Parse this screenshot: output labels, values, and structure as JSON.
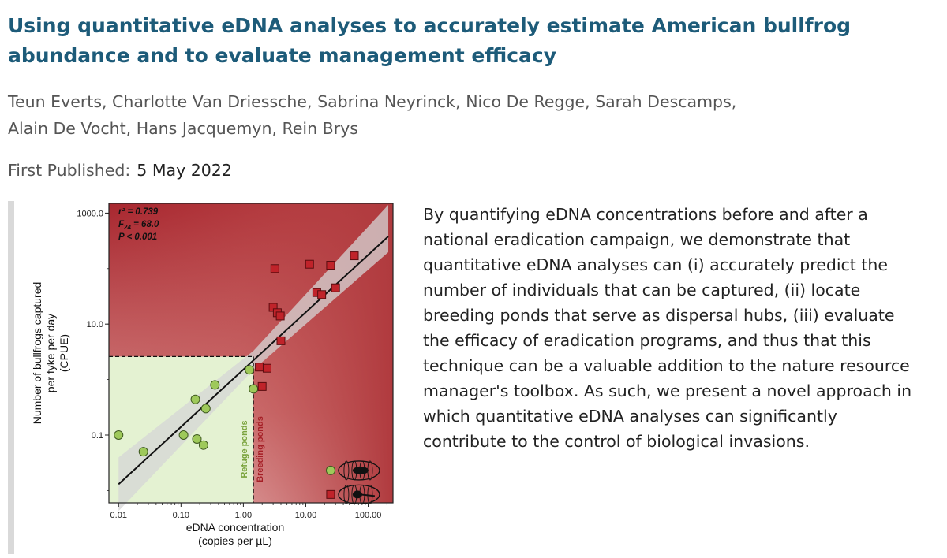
{
  "article": {
    "title": "Using quantitative eDNA analyses to accurately estimate American bullfrog abundance and to evaluate management efficacy",
    "authors": [
      "Teun Everts, Charlotte Van Driessche, Sabrina Neyrinck, Nico De Regge, Sarah Descamps,",
      "Alain De Vocht, Hans Jacquemyn, Rein Brys"
    ],
    "published_label": "First Published:",
    "published_date": "5 May 2022",
    "abstract": "By quantifying eDNA concentrations before and after a national eradication campaign, we demonstrate that quantitative eDNA analyses can (i) accurately predict the number of individuals that can be captured, (ii) locate breeding ponds that serve as dispersal hubs, (iii) evaluate the efficacy of eradication programs, and thus that this technique can be a valuable addition to the nature resource manager's toolbox. As such, we present a novel approach in which quantitative eDNA analyses can significantly contribute to the control of biological invasions."
  },
  "chart_data": {
    "type": "scatter",
    "x_scale": "log",
    "y_scale": "log",
    "xlim": [
      0.007,
      250
    ],
    "ylim": [
      0.006,
      1500
    ],
    "x_ticks": [
      {
        "value": 0.01,
        "label": "0.01"
      },
      {
        "value": 0.1,
        "label": "0.10"
      },
      {
        "value": 1,
        "label": "1.00"
      },
      {
        "value": 10,
        "label": "10.00"
      },
      {
        "value": 100,
        "label": "100.00"
      }
    ],
    "y_ticks": [
      {
        "value": 0.1,
        "label": "0.1"
      },
      {
        "value": 10,
        "label": "10.0"
      },
      {
        "value": 1000,
        "label": "1000.0"
      }
    ],
    "xlabel_line1": "eDNA concentration",
    "xlabel_line2": "(copies per µL)",
    "ylabel_line1": "Number of bullfrogs captured",
    "ylabel_line2": "per fyke per day",
    "ylabel_line3": "(CPUE)",
    "stats": {
      "r2": "r² = 0.739",
      "f_label": "F",
      "f_sub": "24",
      "f_value": " = 68.0",
      "p": "P < 0.001"
    },
    "threshold_x": 1.45,
    "threshold_y": 2.6,
    "region_labels": {
      "refuge": "Refuge ponds",
      "breeding": "Breeding ponds"
    },
    "colors": {
      "refuge": "#9ec95a",
      "breeding": "#c0232a",
      "bg_red": "#c65656",
      "bg_green": "#e4f2d2"
    },
    "fit_line": {
      "x": [
        0.01,
        210
      ],
      "y": [
        0.013,
        380
      ]
    },
    "series": [
      {
        "name": "Refuge ponds",
        "marker": "circle",
        "points": [
          {
            "x": 0.01,
            "y": 0.1
          },
          {
            "x": 0.025,
            "y": 0.05
          },
          {
            "x": 0.11,
            "y": 0.1
          },
          {
            "x": 0.17,
            "y": 0.44
          },
          {
            "x": 0.18,
            "y": 0.085
          },
          {
            "x": 0.23,
            "y": 0.066
          },
          {
            "x": 0.25,
            "y": 0.3
          },
          {
            "x": 0.35,
            "y": 0.8
          },
          {
            "x": 1.25,
            "y": 1.5
          },
          {
            "x": 1.45,
            "y": 0.68
          },
          {
            "x": 25,
            "y": 0.023
          }
        ]
      },
      {
        "name": "Breeding ponds",
        "marker": "square",
        "points": [
          {
            "x": 1.8,
            "y": 1.68
          },
          {
            "x": 2.0,
            "y": 0.75
          },
          {
            "x": 2.4,
            "y": 1.6
          },
          {
            "x": 3.0,
            "y": 20
          },
          {
            "x": 3.2,
            "y": 100
          },
          {
            "x": 3.5,
            "y": 16
          },
          {
            "x": 3.9,
            "y": 14
          },
          {
            "x": 4.0,
            "y": 5
          },
          {
            "x": 11.5,
            "y": 120
          },
          {
            "x": 15,
            "y": 37
          },
          {
            "x": 18,
            "y": 34
          },
          {
            "x": 25,
            "y": 115
          },
          {
            "x": 30,
            "y": 45
          },
          {
            "x": 60,
            "y": 170
          },
          {
            "x": 25,
            "y": 0.0085
          }
        ]
      }
    ]
  }
}
